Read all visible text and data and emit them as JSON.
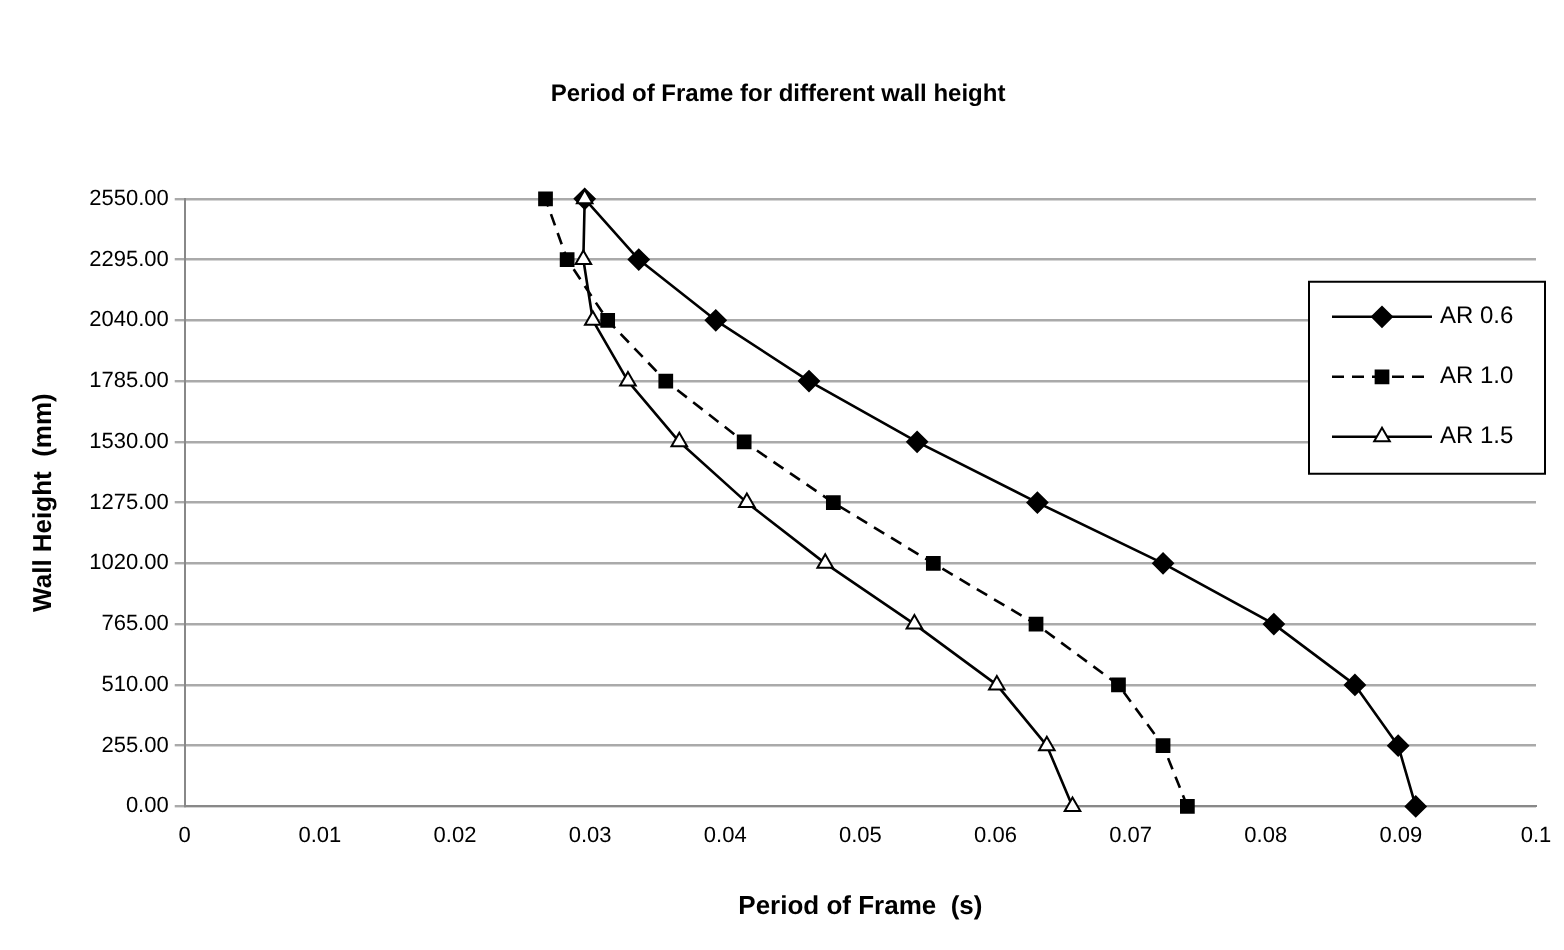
{
  "chart_data": {
    "type": "line",
    "title": "Period of Frame for different wall height",
    "xlabel": "Period of Frame  (s)",
    "ylabel": "Wall Height  (mm)",
    "series": [
      {
        "name": "AR 0.6",
        "color": "#000000",
        "marker": "diamond",
        "line_style": "solid",
        "x": [
          0.0911,
          0.0898,
          0.0866,
          0.0806,
          0.0724,
          0.0631,
          0.0542,
          0.0462,
          0.0393,
          0.0336,
          0.0296
        ],
        "values": [
          0,
          255,
          510,
          765,
          1020,
          1275,
          1530,
          1785,
          2040,
          2295,
          2550
        ]
      },
      {
        "name": "AR 1.0",
        "color": "#000000",
        "marker": "square",
        "line_style": "dashed",
        "x": [
          0.0742,
          0.0724,
          0.0691,
          0.063,
          0.0554,
          0.048,
          0.0414,
          0.0356,
          0.0313,
          0.0283,
          0.0267
        ],
        "values": [
          0,
          255,
          510,
          765,
          1020,
          1275,
          1530,
          1785,
          2040,
          2295,
          2550
        ]
      },
      {
        "name": "AR 1.5",
        "color": "#000000",
        "marker": "triangle",
        "line_style": "solid",
        "x": [
          0.0657,
          0.0638,
          0.0601,
          0.054,
          0.0474,
          0.0416,
          0.0366,
          0.0328,
          0.0302,
          0.0295,
          0.0296
        ],
        "values": [
          0,
          255,
          510,
          765,
          1020,
          1275,
          1530,
          1785,
          2040,
          2295,
          2550
        ]
      }
    ],
    "xlim": [
      0,
      0.1
    ],
    "xticks": [
      0,
      0.01,
      0.02,
      0.03,
      0.04,
      0.05,
      0.06,
      0.07,
      0.08,
      0.09,
      0.1
    ],
    "ylim": [
      0,
      2550
    ],
    "yticks": [
      {
        "value": 0,
        "label": "0.00"
      },
      {
        "value": 255,
        "label": "255.00"
      },
      {
        "value": 510,
        "label": "510.00"
      },
      {
        "value": 765,
        "label": "765.00"
      },
      {
        "value": 1020,
        "label": "1020.00"
      },
      {
        "value": 1275,
        "label": "1275.00"
      },
      {
        "value": 1530,
        "label": "1530.00"
      },
      {
        "value": 1785,
        "label": "1785.00"
      },
      {
        "value": 2040,
        "label": "2040.00"
      },
      {
        "value": 2295,
        "label": "2295.00"
      },
      {
        "value": 2550,
        "label": "2550.00"
      }
    ],
    "grid": "y",
    "legend": "top right"
  }
}
